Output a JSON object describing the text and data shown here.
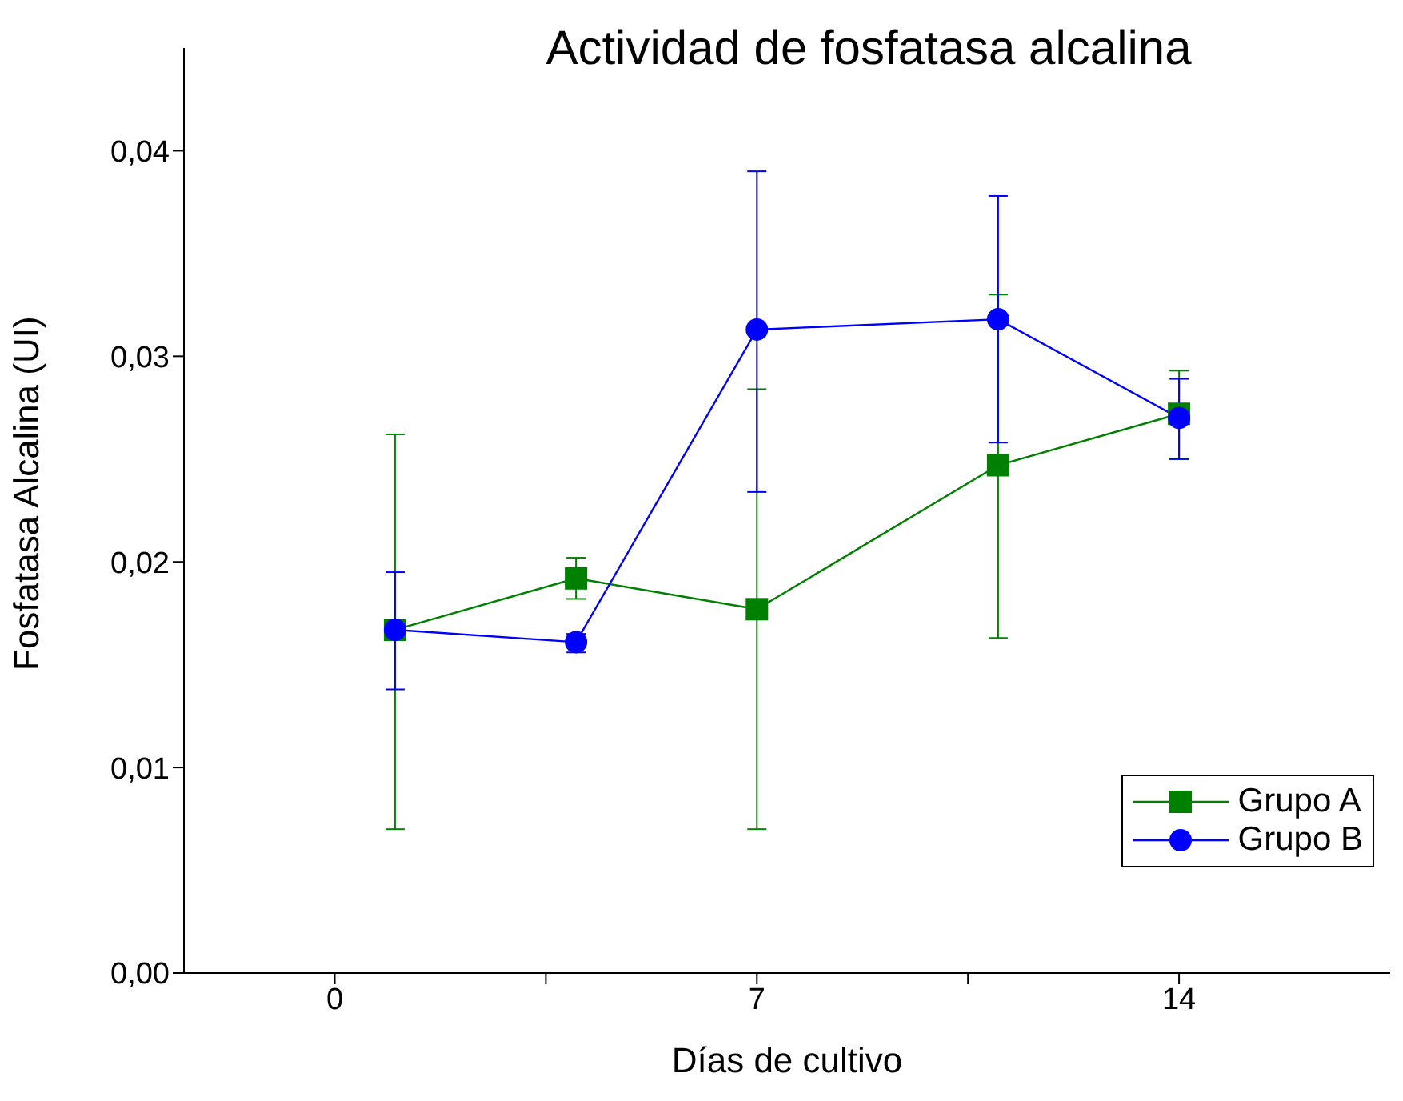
{
  "chart_data": {
    "type": "line",
    "title": "Actividad de fosfatasa alcalina",
    "xlabel": "Días de cultivo",
    "ylabel": "Fosfatasa Alcalina (UI)",
    "x": [
      1,
      4,
      7,
      11,
      14
    ],
    "xlim": [
      -2.5,
      17.5
    ],
    "xticks": [
      0,
      {
        "value": 3.5,
        "label": null
      },
      7,
      {
        "value": 10.5,
        "label": null
      },
      14
    ],
    "ylim": [
      0,
      0.045
    ],
    "yticks": [
      {
        "value": 0,
        "label": "0,00"
      },
      {
        "value": 0.01,
        "label": "0,01"
      },
      {
        "value": 0.02,
        "label": "0,02"
      },
      {
        "value": 0.03,
        "label": "0,03"
      },
      {
        "value": 0.04,
        "label": "0,04"
      }
    ],
    "series": [
      {
        "name": "Grupo A",
        "color": "#008000",
        "marker": "square",
        "values": [
          0.0167,
          0.0192,
          0.0177,
          0.0247,
          0.0272
        ],
        "errors": [
          [
            0.007,
            0.0262
          ],
          [
            0.0182,
            0.0202
          ],
          [
            0.007,
            0.0284
          ],
          [
            0.0163,
            0.033
          ],
          [
            0.025,
            0.0293
          ]
        ]
      },
      {
        "name": "Grupo B",
        "color": "#0000ff",
        "marker": "circle",
        "values": [
          0.0167,
          0.0161,
          0.0313,
          0.0318,
          0.027
        ],
        "errors": [
          [
            0.0138,
            0.0195
          ],
          [
            0.0156,
            0.0165
          ],
          [
            0.0234,
            0.039
          ],
          [
            0.0258,
            0.0378
          ],
          [
            0.025,
            0.0289
          ]
        ]
      }
    ],
    "grid": false,
    "legend": "bottom right",
    "line_style": "solid"
  }
}
